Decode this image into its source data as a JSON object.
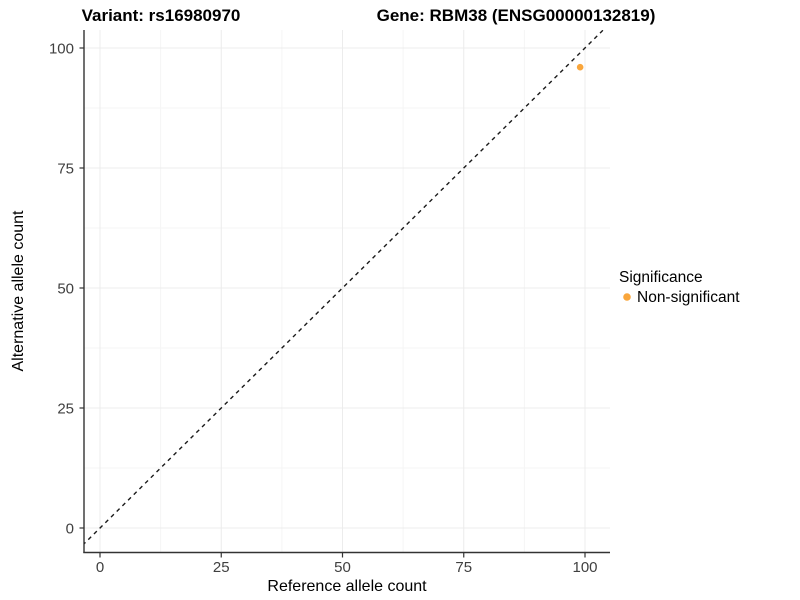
{
  "chart_data": {
    "type": "scatter",
    "titles": {
      "left": "Variant: rs16980970",
      "right": "Gene: RBM38 (ENSG00000132819)"
    },
    "xlabel": "Reference allele count",
    "ylabel": "Alternative allele count",
    "x_ticks": [
      0,
      25,
      50,
      75,
      100
    ],
    "y_ticks": [
      0,
      25,
      50,
      75,
      100
    ],
    "xlim": [
      -4,
      108
    ],
    "ylim": [
      -5,
      109
    ],
    "grid": true,
    "points": [
      {
        "x": 99,
        "y": 96,
        "series": "Non-significant"
      }
    ],
    "identity_line": {
      "equation": "y = x",
      "style": "dashed",
      "color": "#1a1a1a"
    },
    "legend": {
      "title": "Significance",
      "position": "right",
      "entries": [
        {
          "label": "Non-significant",
          "color": "#F9A63C"
        }
      ]
    },
    "colors": {
      "point": "#F9A63C",
      "axis": "#333333",
      "tick_text": "#404040",
      "grid_major": "#ECECEC",
      "grid_minor": "#F5F5F5",
      "title_text": "#000000",
      "background": "#FFFFFF"
    }
  }
}
